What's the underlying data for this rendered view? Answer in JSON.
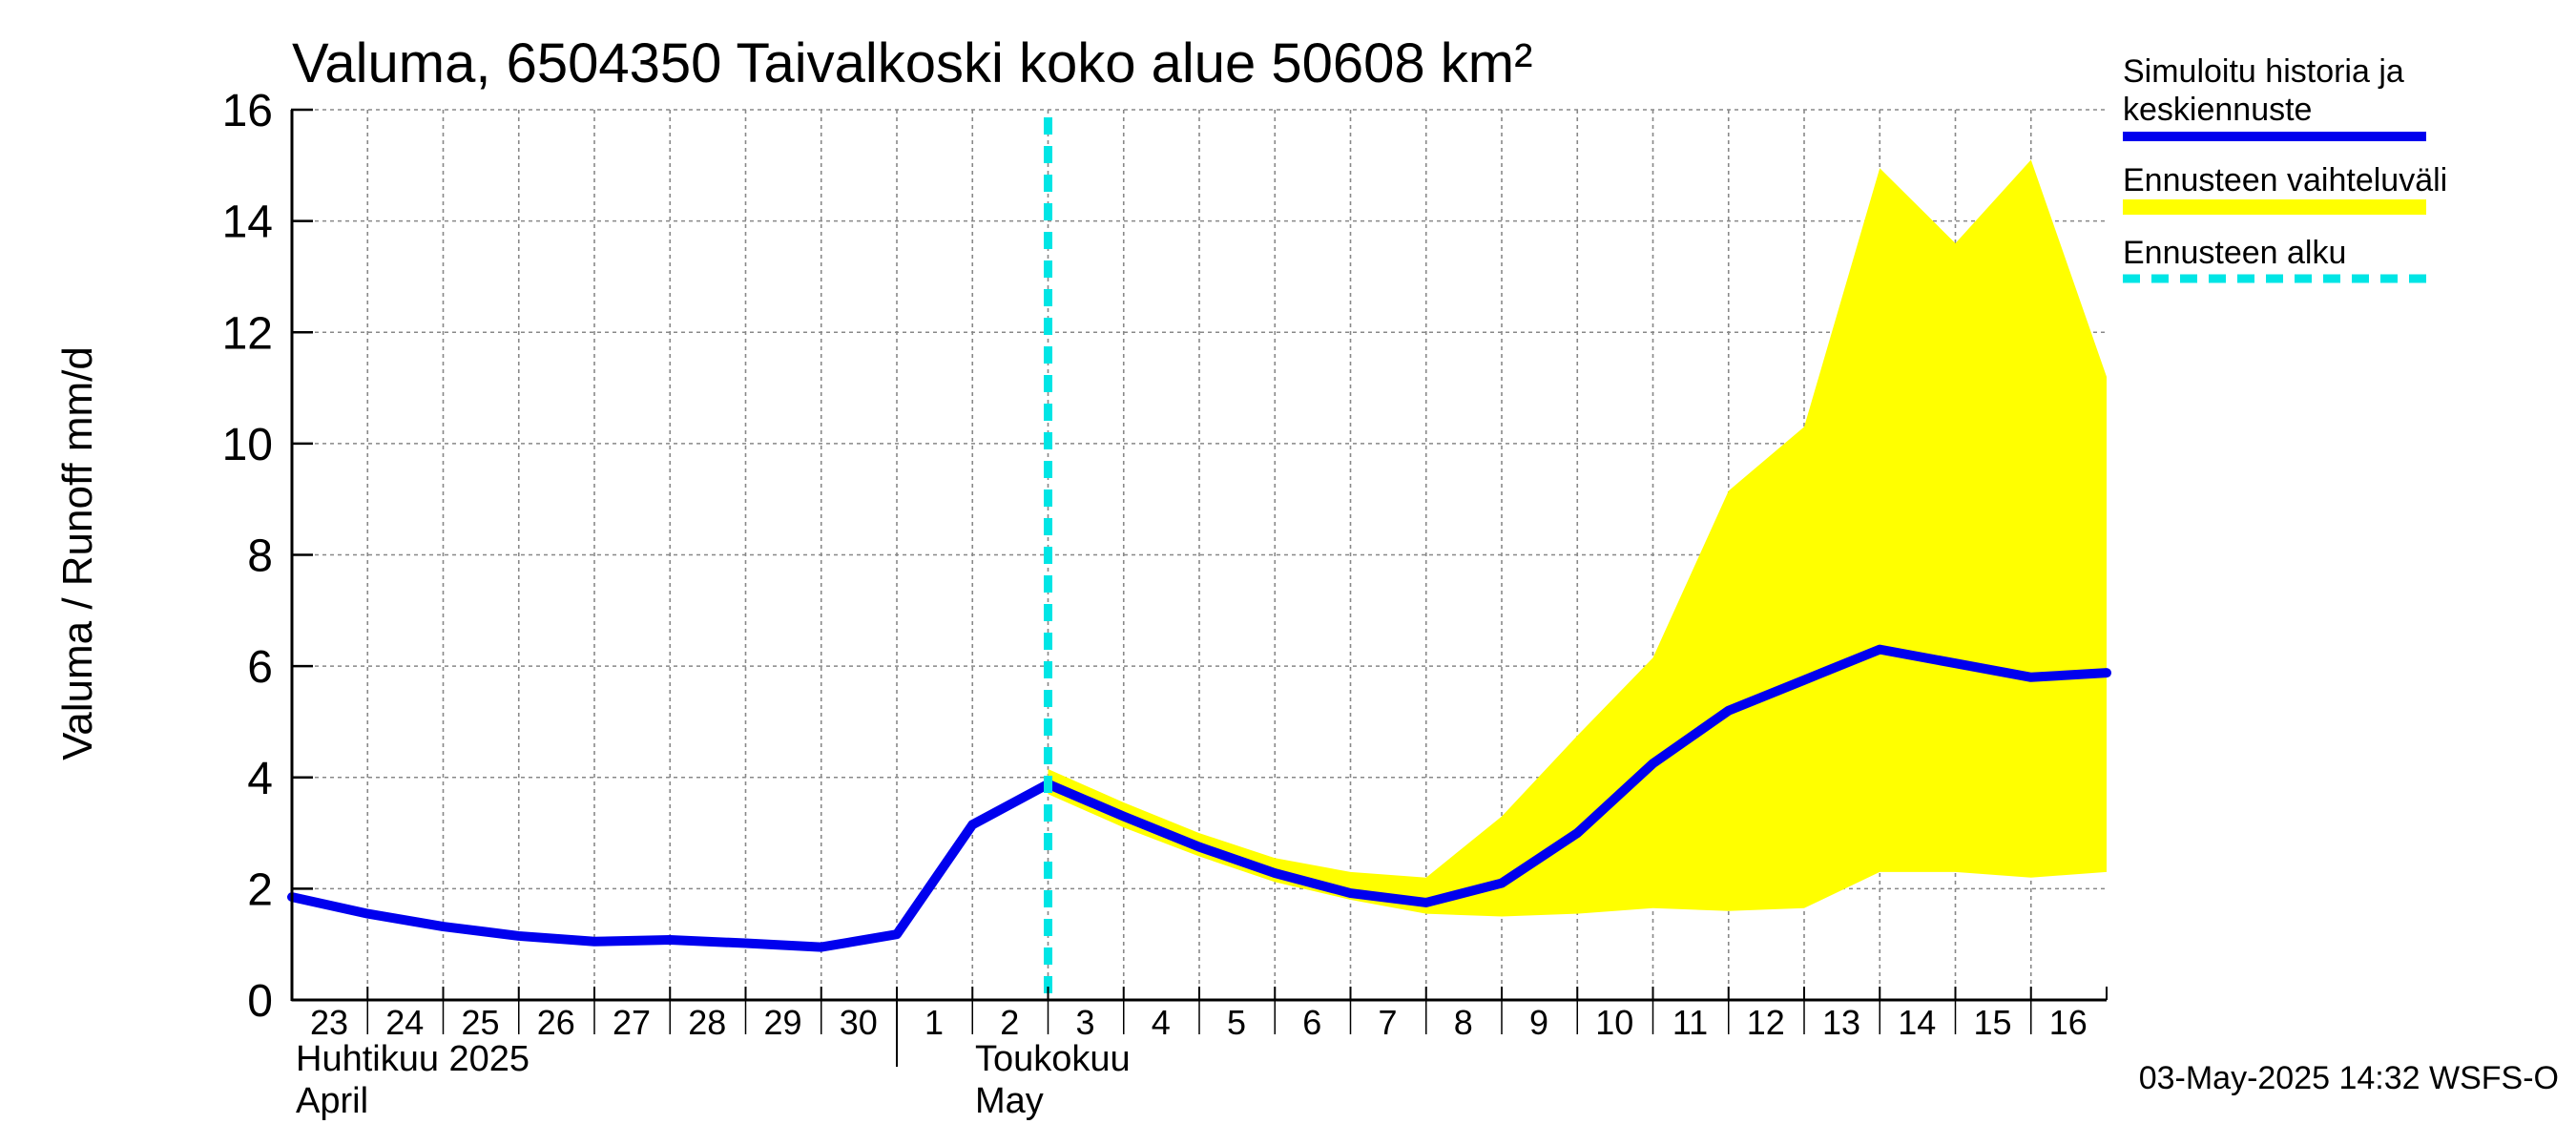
{
  "chart_data": {
    "type": "line",
    "title": "Valuma, 6504350 Taivalkoski koko alue 50608 km²",
    "ylabel": "Valuma / Runoff    mm/d",
    "ylim": [
      0,
      16
    ],
    "yticks": [
      "0",
      "2",
      "4",
      "6",
      "8",
      "10",
      "12",
      "14",
      "16"
    ],
    "x_day_labels": [
      "23",
      "24",
      "25",
      "26",
      "27",
      "28",
      "29",
      "30",
      "1",
      "2",
      "3",
      "4",
      "5",
      "6",
      "7",
      "8",
      "9",
      "10",
      "11",
      "12",
      "13",
      "14",
      "15",
      "16"
    ],
    "x_dates": [
      "2025-04-23",
      "2025-04-24",
      "2025-04-25",
      "2025-04-26",
      "2025-04-27",
      "2025-04-28",
      "2025-04-29",
      "2025-04-30",
      "2025-05-01",
      "2025-05-02",
      "2025-05-03",
      "2025-05-04",
      "2025-05-05",
      "2025-05-06",
      "2025-05-07",
      "2025-05-08",
      "2025-05-09",
      "2025-05-10",
      "2025-05-11",
      "2025-05-12",
      "2025-05-13",
      "2025-05-14",
      "2025-05-15",
      "2025-05-16",
      "2025-05-17"
    ],
    "month_labels": [
      {
        "line1": "Huhtikuu  2025",
        "line2": "April"
      },
      {
        "line1": "Toukokuu",
        "line2": "May"
      }
    ],
    "series": [
      {
        "name": "Simuloitu historia ja keskiennuste",
        "color": "#0000ee",
        "values": [
          1.85,
          1.55,
          1.32,
          1.15,
          1.05,
          1.08,
          1.02,
          0.95,
          1.18,
          3.15,
          3.88,
          3.3,
          2.75,
          2.28,
          1.92,
          1.75,
          2.1,
          3.0,
          4.25,
          5.2,
          5.75,
          6.3,
          6.05,
          5.8,
          5.88
        ]
      },
      {
        "name": "Ennusteen vaihteluväli",
        "color": "#ffff00",
        "start_date": "2025-05-03",
        "upper": [
          4.15,
          3.55,
          3.0,
          2.55,
          2.3,
          2.2,
          3.3,
          4.75,
          6.15,
          9.15,
          10.3,
          14.95,
          13.6,
          15.1,
          11.2
        ],
        "lower": [
          3.7,
          3.1,
          2.58,
          2.12,
          1.8,
          1.55,
          1.5,
          1.55,
          1.65,
          1.6,
          1.65,
          2.3,
          2.3,
          2.2,
          2.3
        ]
      }
    ],
    "forecast_start": "2025-05-03",
    "forecast_start_label": "Ennusteen alku",
    "forecast_start_color": "#00e5e5",
    "grid": true,
    "legend_position": "right"
  },
  "legend": {
    "history_line1": "Simuloitu historia ja",
    "history_line2": "keskiennuste",
    "range": "Ennusteen vaihteluväli",
    "start": "Ennusteen alku"
  },
  "timestamp": "03-May-2025 14:32 WSFS-O"
}
